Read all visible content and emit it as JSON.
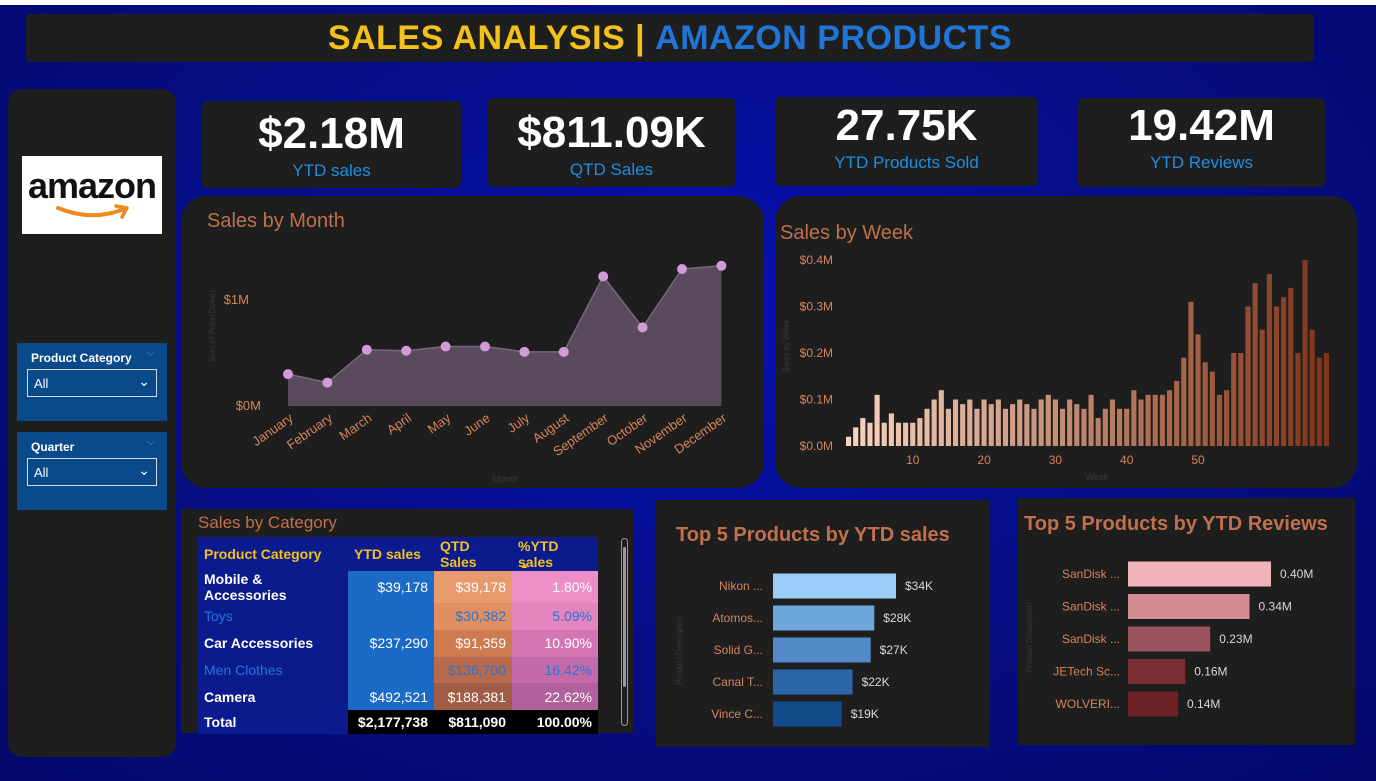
{
  "header": {
    "title_part1": "SALES ANALYSIS |",
    "title_part2": "AMAZON PRODUCTS"
  },
  "logo": {
    "text": "amazon"
  },
  "slicers": [
    {
      "title": "Product Category",
      "value": "All"
    },
    {
      "title": "Quarter",
      "value": "All"
    }
  ],
  "kpis": [
    {
      "value": "$2.18M",
      "label": "YTD sales"
    },
    {
      "value": "$811.09K",
      "label": "QTD Sales"
    },
    {
      "value": "27.75K",
      "label": "YTD Products Sold"
    },
    {
      "value": "19.42M",
      "label": "YTD Reviews"
    }
  ],
  "colors": {
    "accent_yellow": "#f2c21b",
    "accent_blue": "#1f76d6",
    "panel": "#1e1e1e",
    "title_orange": "#c0704a"
  },
  "sales_by_month": {
    "title": "Sales by Month",
    "xlabel": "Month",
    "ylabel": "Sum of Price(Dollar)",
    "ytick_labels": [
      "$0M",
      "$1M"
    ],
    "chart_data": {
      "type": "area",
      "categories": [
        "January",
        "February",
        "March",
        "April",
        "May",
        "June",
        "July",
        "August",
        "September",
        "October",
        "November",
        "December"
      ],
      "values": [
        0.3,
        0.22,
        0.53,
        0.52,
        0.56,
        0.56,
        0.51,
        0.51,
        1.22,
        0.74,
        1.29,
        1.32
      ],
      "unit": "$M",
      "ylim": [
        0,
        1.45
      ]
    }
  },
  "sales_by_week": {
    "title": "Sales by Week",
    "xlabel": "Week",
    "ylabel": "Sales by Week",
    "ytick_labels": [
      "$0.0M",
      "$0.1M",
      "$0.2M",
      "$0.3M",
      "$0.4M"
    ],
    "xtick_labels": [
      "10",
      "20",
      "30",
      "40",
      "50"
    ],
    "chart_data": {
      "type": "bar",
      "x_start": 1,
      "values": [
        0.02,
        0.04,
        0.06,
        0.05,
        0.11,
        0.05,
        0.07,
        0.05,
        0.05,
        0.05,
        0.06,
        0.08,
        0.1,
        0.12,
        0.08,
        0.1,
        0.09,
        0.1,
        0.08,
        0.1,
        0.09,
        0.1,
        0.08,
        0.09,
        0.1,
        0.09,
        0.08,
        0.1,
        0.11,
        0.1,
        0.08,
        0.1,
        0.09,
        0.08,
        0.11,
        0.06,
        0.08,
        0.1,
        0.08,
        0.08,
        0.12,
        0.1,
        0.11,
        0.11,
        0.11,
        0.12,
        0.14,
        0.19,
        0.31,
        0.24,
        0.18,
        0.16,
        0.11,
        0.12,
        0.2,
        0.2,
        0.3,
        0.35,
        0.25,
        0.37,
        0.3,
        0.32,
        0.34,
        0.2,
        0.4,
        0.25,
        0.19,
        0.2
      ],
      "ylim": [
        0,
        0.4
      ]
    }
  },
  "sales_by_category": {
    "title": "Sales by Category",
    "columns": [
      "Product Category",
      "YTD sales",
      "QTD Sales",
      "%YTD sales"
    ],
    "rows": [
      {
        "name": "Mobile & Accessories",
        "ytd": "$39,178",
        "qtd": "$39,178",
        "pct": "1.80%"
      },
      {
        "name": "Toys",
        "ytd": "",
        "qtd": "$30,382",
        "pct": "5.09%"
      },
      {
        "name": "Car Accessories",
        "ytd": "$237,290",
        "qtd": "$91,359",
        "pct": "10.90%"
      },
      {
        "name": "Men Clothes",
        "ytd": "",
        "qtd": "$136,700",
        "pct": "16.42%"
      },
      {
        "name": "Camera",
        "ytd": "$492,521",
        "qtd": "$188,381",
        "pct": "22.62%"
      }
    ],
    "total": {
      "name": "Total",
      "ytd": "$2,177,738",
      "qtd": "$811,090",
      "pct": "100.00%"
    }
  },
  "top5_ytd_sales": {
    "title": "Top 5 Products by YTD sales",
    "ylabel": "Product Description",
    "chart_data": {
      "type": "bar",
      "orientation": "horizontal",
      "categories": [
        "Nikon ...",
        "Atomos...",
        "Solid G...",
        "Canal T...",
        "Vince C..."
      ],
      "values": [
        34,
        28,
        27,
        22,
        19
      ],
      "value_labels": [
        "$34K",
        "$28K",
        "$27K",
        "$22K",
        "$19K"
      ],
      "unit": "$K",
      "bar_colors": [
        "#9ccdf8",
        "#6ea7dc",
        "#5389c8",
        "#2a66a8",
        "#114b8a"
      ]
    }
  },
  "top5_ytd_reviews": {
    "title": "Top 5 Products by YTD Reviews",
    "ylabel": "Product Description",
    "chart_data": {
      "type": "bar",
      "orientation": "horizontal",
      "categories": [
        "SanDisk ...",
        "SanDisk ...",
        "SanDisk ...",
        "JETech Sc...",
        "WOLVERI..."
      ],
      "values": [
        0.4,
        0.34,
        0.23,
        0.16,
        0.14
      ],
      "value_labels": [
        "0.40M",
        "0.34M",
        "0.23M",
        "0.16M",
        "0.14M"
      ],
      "unit": "M",
      "bar_colors": [
        "#f0b3b8",
        "#d38c92",
        "#9b545b",
        "#7a2d33",
        "#6b2328"
      ]
    }
  }
}
